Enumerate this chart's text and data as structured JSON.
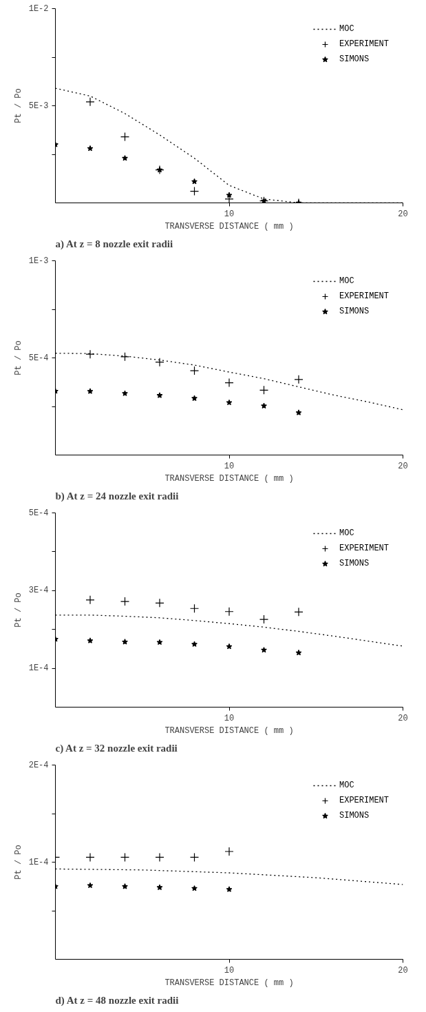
{
  "chart_data": [
    {
      "type": "line",
      "title": "a) At z = 8 nozzle exit radii",
      "xlabel": "TRANSVERSE DISTANCE ( mm )",
      "ylabel": "Pt / Po",
      "xlim": [
        0,
        20
      ],
      "xticks": [
        10,
        20
      ],
      "ylim": [
        0,
        0.01
      ],
      "yticks": [
        {
          "value": 0.0025,
          "label": null
        },
        {
          "value": 0.005,
          "label": "5E-3"
        },
        {
          "value": 0.0075,
          "label": null
        },
        {
          "value": 0.01,
          "label": "1E-2"
        }
      ],
      "grid": false,
      "legend": "top right",
      "series": [
        {
          "name": "MOC",
          "line_style": "dotted",
          "marker": "none",
          "color": "#000000",
          "x": [
            0,
            2,
            4,
            6,
            8,
            10,
            12,
            14,
            20
          ],
          "values": [
            0.0059,
            0.0055,
            0.0046,
            0.0035,
            0.0023,
            0.0009,
            0.0002,
            0,
            0
          ]
        },
        {
          "name": "EXPERIMENT",
          "type": "scatter",
          "marker": "cross",
          "color": "#000000",
          "x": [
            2,
            4,
            6,
            8,
            10,
            12,
            14
          ],
          "values": [
            0.0052,
            0.0034,
            0.0017,
            0.0006,
            0.0002,
            0.0001,
            0
          ]
        },
        {
          "name": "SIMONS",
          "type": "scatter",
          "marker": "star",
          "color": "#000000",
          "x": [
            0,
            2,
            4,
            6,
            8,
            10,
            12,
            14
          ],
          "values": [
            0.003,
            0.0028,
            0.0023,
            0.0017,
            0.0011,
            0.0004,
            0.0001,
            0
          ]
        }
      ]
    },
    {
      "type": "line",
      "title": "b) At z = 24 nozzle exit radii",
      "xlabel": "TRANSVERSE DISTANCE ( mm )",
      "ylabel": "Pt / Po",
      "xlim": [
        0,
        20
      ],
      "xticks": [
        10,
        20
      ],
      "ylim": [
        0,
        0.001
      ],
      "yticks": [
        {
          "value": 0.00025,
          "label": null
        },
        {
          "value": 0.0005,
          "label": "5E-4"
        },
        {
          "value": 0.00075,
          "label": null
        },
        {
          "value": 0.001,
          "label": "1E-3"
        }
      ],
      "grid": false,
      "legend": "top right",
      "series": [
        {
          "name": "MOC",
          "line_style": "dotted",
          "marker": "none",
          "color": "#000000",
          "x": [
            0,
            2,
            4,
            6,
            8,
            10,
            12,
            14,
            16,
            18,
            20
          ],
          "values": [
            0.000524,
            0.000522,
            0.000509,
            0.000489,
            0.000463,
            0.000427,
            0.000393,
            0.000351,
            0.000309,
            0.000273,
            0.000233
          ]
        },
        {
          "name": "EXPERIMENT",
          "type": "scatter",
          "marker": "cross",
          "color": "#000000",
          "x": [
            2,
            4,
            6,
            8,
            10,
            12,
            14
          ],
          "values": [
            0.000519,
            0.000506,
            0.000478,
            0.000434,
            0.000372,
            0.000334,
            0.000389
          ]
        },
        {
          "name": "SIMONS",
          "type": "scatter",
          "marker": "star",
          "color": "#000000",
          "x": [
            0,
            2,
            4,
            6,
            8,
            10,
            12,
            14
          ],
          "values": [
            0.000329,
            0.000328,
            0.000317,
            0.000307,
            0.000292,
            0.00027,
            0.000253,
            0.000218
          ]
        }
      ]
    },
    {
      "type": "line",
      "title": "c) At z = 32 nozzle exit radii",
      "xlabel": "TRANSVERSE DISTANCE ( mm )",
      "ylabel": "Pt / Po",
      "xlim": [
        0,
        20
      ],
      "xticks": [
        10,
        20
      ],
      "ylim": [
        0,
        0.0005
      ],
      "yticks": [
        {
          "value": 0.0001,
          "label": "1E-4"
        },
        {
          "value": 0.0002,
          "label": null
        },
        {
          "value": 0.0003,
          "label": "3E-4"
        },
        {
          "value": 0.0004,
          "label": null
        },
        {
          "value": 0.0005,
          "label": "5E-4"
        }
      ],
      "grid": false,
      "legend": "top right",
      "series": [
        {
          "name": "MOC",
          "line_style": "dotted",
          "marker": "none",
          "color": "#000000",
          "x": [
            0,
            2,
            4,
            6,
            8,
            10,
            12,
            14,
            16,
            18,
            20
          ],
          "values": [
            0.000237,
            0.000237,
            0.000234,
            0.00023,
            0.000223,
            0.000215,
            0.000206,
            0.000195,
            0.000183,
            0.00017,
            0.000157
          ]
        },
        {
          "name": "EXPERIMENT",
          "type": "scatter",
          "marker": "cross",
          "color": "#000000",
          "x": [
            2,
            4,
            6,
            8,
            10,
            12,
            14
          ],
          "values": [
            0.000276,
            0.000272,
            0.000268,
            0.000254,
            0.000246,
            0.000226,
            0.000245
          ]
        },
        {
          "name": "SIMONS",
          "type": "scatter",
          "marker": "star",
          "color": "#000000",
          "x": [
            0,
            2,
            4,
            6,
            8,
            10,
            12,
            14
          ],
          "values": [
            0.000175,
            0.000171,
            0.000168,
            0.000167,
            0.000162,
            0.000156,
            0.000147,
            0.00014
          ]
        }
      ]
    },
    {
      "type": "line",
      "title": "d) At z = 48 nozzle exit radii",
      "xlabel": "TRANSVERSE DISTANCE ( mm )",
      "ylabel": "Pt / Po",
      "xlim": [
        0,
        20
      ],
      "xticks": [
        10,
        20
      ],
      "ylim": [
        0,
        0.0002
      ],
      "yticks": [
        {
          "value": 5e-05,
          "label": null
        },
        {
          "value": 0.0001,
          "label": "1E-4"
        },
        {
          "value": 0.00015,
          "label": null
        },
        {
          "value": 0.0002,
          "label": "2E-4"
        }
      ],
      "grid": false,
      "legend": "top right",
      "series": [
        {
          "name": "MOC",
          "line_style": "dotted",
          "marker": "none",
          "color": "#000000",
          "x": [
            0,
            5,
            10,
            15,
            20
          ],
          "values": [
            9.3e-05,
            9.2e-05,
            8.9e-05,
            8.4e-05,
            7.7e-05
          ]
        },
        {
          "name": "EXPERIMENT",
          "type": "scatter",
          "marker": "cross",
          "color": "#000000",
          "x": [
            0,
            2,
            4,
            6,
            8,
            10
          ],
          "values": [
            0.000105,
            0.000105,
            0.000105,
            0.000105,
            0.000105,
            0.000111
          ]
        },
        {
          "name": "SIMONS",
          "type": "scatter",
          "marker": "star",
          "color": "#000000",
          "x": [
            0,
            2,
            4,
            6,
            8,
            10
          ],
          "values": [
            7.5e-05,
            7.6e-05,
            7.5e-05,
            7.4e-05,
            7.3e-05,
            7.2e-05
          ]
        }
      ]
    }
  ]
}
